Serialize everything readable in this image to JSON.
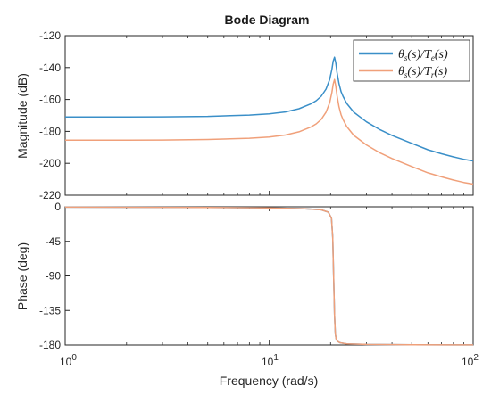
{
  "chart_data": [
    {
      "type": "line",
      "panel": "magnitude",
      "title": "Bode Diagram",
      "xlabel": "",
      "ylabel": "Magnitude (dB)",
      "xscale": "log",
      "xlim": [
        1,
        100
      ],
      "ylim": [
        -220,
        -120
      ],
      "yticks": [
        -120,
        -140,
        -160,
        -180,
        -200,
        -220
      ],
      "grid": false,
      "legend_position": "top-right",
      "series": [
        {
          "name": "θs(s)/Te(s)",
          "color": "#3a8fc8",
          "x": [
            1,
            2,
            3,
            5,
            8,
            10,
            12,
            14,
            16,
            17,
            18,
            19,
            19.8,
            20.3,
            20.6,
            20.9,
            21.2,
            21.5,
            22,
            22.5,
            23,
            24,
            26,
            30,
            35,
            40,
            50,
            60,
            70,
            80,
            90,
            100
          ],
          "y": [
            -171,
            -171,
            -170.9,
            -170.6,
            -169.8,
            -169,
            -167.8,
            -165.8,
            -162.8,
            -160.8,
            -158,
            -153.5,
            -147.5,
            -141,
            -136,
            -133.5,
            -137,
            -143,
            -150,
            -155,
            -158,
            -162.5,
            -168,
            -174,
            -179,
            -182.5,
            -187.5,
            -191.5,
            -194,
            -196,
            -197.5,
            -198.5
          ]
        },
        {
          "name": "θs(s)/Tr(s)",
          "color": "#f0a07a",
          "x": [
            1,
            2,
            3,
            5,
            8,
            10,
            12,
            14,
            16,
            17,
            18,
            19,
            19.8,
            20.3,
            20.6,
            20.9,
            21.2,
            21.5,
            22,
            22.5,
            23,
            24,
            26,
            30,
            35,
            40,
            50,
            60,
            70,
            80,
            90,
            100
          ],
          "y": [
            -185.5,
            -185.5,
            -185.4,
            -185.1,
            -184.3,
            -183.5,
            -182.3,
            -180.3,
            -177.3,
            -175.3,
            -172.5,
            -168,
            -162,
            -155.5,
            -150.5,
            -147.5,
            -151.5,
            -157.5,
            -164.5,
            -169.5,
            -172.5,
            -177,
            -182.5,
            -188.5,
            -193.5,
            -197,
            -202,
            -206,
            -208.5,
            -210.5,
            -212,
            -213
          ]
        }
      ]
    },
    {
      "type": "line",
      "panel": "phase",
      "title": "",
      "xlabel": "Frequency  (rad/s)",
      "ylabel": "Phase (deg)",
      "xscale": "log",
      "xlim": [
        1,
        100
      ],
      "ylim": [
        -180,
        0
      ],
      "yticks": [
        0,
        -45,
        -90,
        -135,
        -180
      ],
      "xticks": [
        1,
        10,
        100
      ],
      "grid": false,
      "series": [
        {
          "name": "θs(s)/Te(s)",
          "color": "#3a8fc8",
          "x": [
            1,
            5,
            10,
            15,
            18,
            19.5,
            20.2,
            20.5,
            20.7,
            20.9,
            21.1,
            21.3,
            21.6,
            22.2,
            24,
            30,
            50,
            100
          ],
          "y": [
            -0.5,
            -0.8,
            -1.5,
            -2.5,
            -4,
            -7,
            -15,
            -40,
            -90,
            -140,
            -165,
            -172,
            -175,
            -177,
            -178.5,
            -179.3,
            -179.7,
            -179.9
          ]
        },
        {
          "name": "θs(s)/Tr(s)",
          "color": "#f0a07a",
          "x": [
            1,
            5,
            10,
            15,
            18,
            19.5,
            20.2,
            20.5,
            20.7,
            20.9,
            21.1,
            21.3,
            21.6,
            22.2,
            24,
            30,
            50,
            100
          ],
          "y": [
            -0.5,
            -0.8,
            -1.5,
            -2.5,
            -4,
            -7,
            -15,
            -40,
            -90,
            -140,
            -165,
            -172,
            -175,
            -177,
            -178.5,
            -179.3,
            -179.7,
            -179.9
          ]
        }
      ]
    }
  ],
  "legend": {
    "entries": [
      {
        "theta": "θ",
        "s_sub": "s",
        "mid": "(s)/T",
        "t_sub": "e",
        "end": "(s)"
      },
      {
        "theta": "θ",
        "s_sub": "s",
        "mid": "(s)/T",
        "t_sub": "r",
        "end": "(s)"
      }
    ]
  },
  "x_tick_labels": [
    {
      "base": "10",
      "exp": "0"
    },
    {
      "base": "10",
      "exp": "1"
    },
    {
      "base": "10",
      "exp": "2"
    }
  ]
}
